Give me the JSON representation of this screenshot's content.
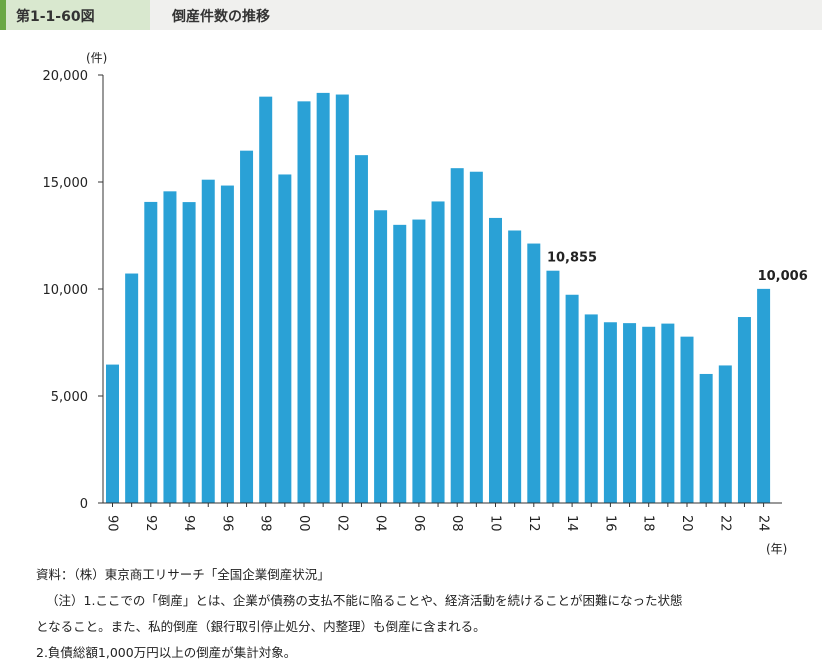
{
  "header": {
    "figure_number": "第1-1-60図",
    "figure_title": "倒産件数の推移"
  },
  "colors": {
    "bar": "#2aa1d6",
    "header_accent": "#6aa844"
  },
  "chart_data": {
    "type": "bar",
    "title": "倒産件数の推移",
    "ylabel": "(件)",
    "xlabel": "(年)",
    "ylim": [
      0,
      20000
    ],
    "grid": false,
    "y_ticks": [
      "0",
      "5,000",
      "10,000",
      "15,000",
      "20,000"
    ],
    "y_tick_values": [
      0,
      5000,
      10000,
      15000,
      20000
    ],
    "categories": [
      "90",
      "91",
      "92",
      "93",
      "94",
      "95",
      "96",
      "97",
      "98",
      "99",
      "00",
      "01",
      "02",
      "03",
      "04",
      "05",
      "06",
      "07",
      "08",
      "09",
      "10",
      "11",
      "12",
      "13",
      "14",
      "15",
      "16",
      "17",
      "18",
      "19",
      "20",
      "21",
      "22",
      "23",
      "24"
    ],
    "x_tick_labels": [
      "90",
      "",
      "92",
      "",
      "94",
      "",
      "96",
      "",
      "98",
      "",
      "00",
      "",
      "02",
      "",
      "04",
      "",
      "06",
      "",
      "08",
      "",
      "10",
      "",
      "12",
      "",
      "14",
      "",
      "16",
      "",
      "18",
      "",
      "20",
      "",
      "22",
      "",
      "24"
    ],
    "values": [
      6468,
      10723,
      14069,
      14564,
      14061,
      15108,
      14834,
      16464,
      18988,
      15352,
      18769,
      19164,
      19087,
      16255,
      13679,
      12998,
      13245,
      14091,
      15646,
      15480,
      13321,
      12734,
      12124,
      10855,
      9731,
      8812,
      8446,
      8405,
      8235,
      8383,
      7773,
      6030,
      6428,
      8690,
      10006
    ],
    "annotations": [
      {
        "category": "13",
        "text": "10,855"
      },
      {
        "category": "24",
        "text": "10,006"
      }
    ]
  },
  "notes": {
    "source": "資料：（株）東京商工リサーチ「全国企業倒産状況」",
    "note1": "（注）1.ここでの「倒産」とは、企業が債務の支払不能に陥ることや、経済活動を続けることが困難になった状態",
    "note1_cont": "となること。また、私的倒産（銀行取引停止処分、内整理）も倒産に含まれる。",
    "note2": "2.負債総額1,000万円以上の倒産が集計対象。"
  }
}
